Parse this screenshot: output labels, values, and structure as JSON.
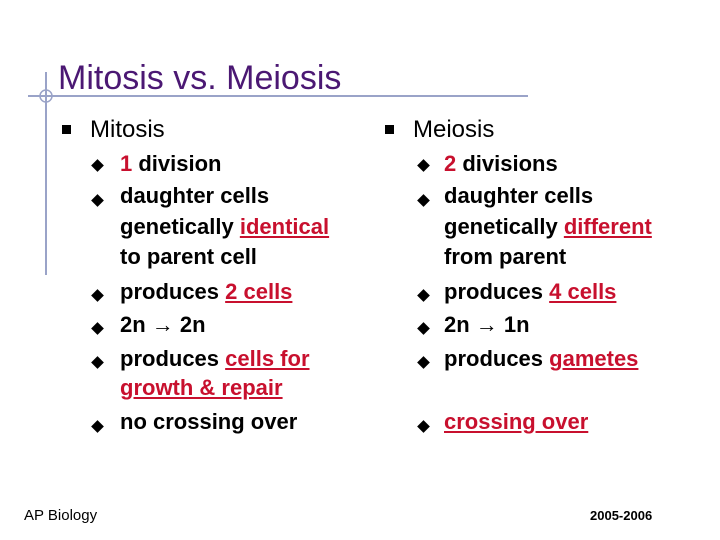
{
  "title": "Mitosis vs. Meiosis",
  "mitosis": {
    "heading": "Mitosis",
    "b1_num": "1",
    "b1_rest": " division",
    "b2_line1": "daughter cells",
    "b2_line2_pre": "genetically ",
    "b2_line2_red": "identical",
    "b2_line3": "to parent cell",
    "b3_pre": "produces ",
    "b3_red": "2 cells",
    "b4_a": "2n ",
    "b4_arrow": "→",
    "b4_b": " 2n",
    "b5_pre": "produces ",
    "b5_red1": "cells for ",
    "b5_red2": "growth & repair",
    "b6": "no crossing over"
  },
  "meiosis": {
    "heading": "Meiosis",
    "b1_num": "2",
    "b1_rest": " divisions",
    "b2_line1": "daughter cells",
    "b2_line2_pre": "genetically ",
    "b2_line2_red": "different",
    "b2_line3": "from parent",
    "b3_pre": "produces ",
    "b3_red": "4 cells",
    "b4_a": "2n ",
    "b4_arrow": "→",
    "b4_b": " 1n",
    "b5_pre": "produces ",
    "b5_red": "gametes",
    "b6_red": "crossing over"
  },
  "footer": {
    "left": "AP Biology",
    "right": "2005-2006"
  },
  "colors": {
    "title": "#4b1873",
    "highlight": "#c8102e",
    "decoration": "#9aa3c8"
  }
}
